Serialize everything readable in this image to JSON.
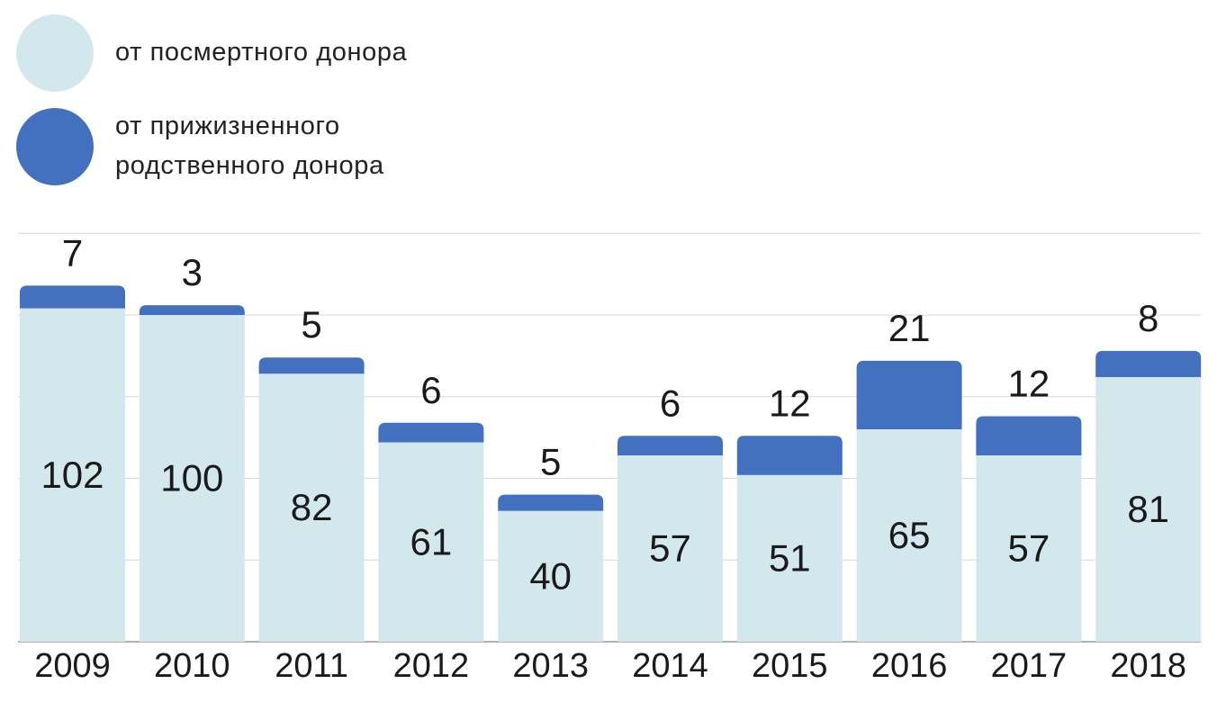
{
  "colors": {
    "deceased": "#d3e8ed",
    "living": "#4470c0",
    "grid": "#d9d9d9",
    "axis": "#999999",
    "text": "#1a1a1a"
  },
  "legend": {
    "items": [
      {
        "label_lines": [
          "от посмертного донора"
        ],
        "color": "#d3e8ed"
      },
      {
        "label_lines": [
          "от прижизненного",
          "родственного донора"
        ],
        "color": "#4470c0"
      }
    ]
  },
  "chart_data": {
    "type": "bar",
    "stacked": true,
    "categories": [
      "2009",
      "2010",
      "2011",
      "2012",
      "2013",
      "2014",
      "2015",
      "2016",
      "2017",
      "2018"
    ],
    "series": [
      {
        "name": "от посмертного донора",
        "values": [
          102,
          100,
          82,
          61,
          40,
          57,
          51,
          65,
          57,
          81
        ],
        "color": "#d3e8ed"
      },
      {
        "name": "от прижизненного родственного донора",
        "values": [
          7,
          3,
          5,
          6,
          5,
          6,
          12,
          21,
          12,
          8
        ],
        "color": "#4470c0"
      }
    ],
    "ylim": [
      0,
      125
    ],
    "grid": true,
    "legend_position": "top-left"
  }
}
